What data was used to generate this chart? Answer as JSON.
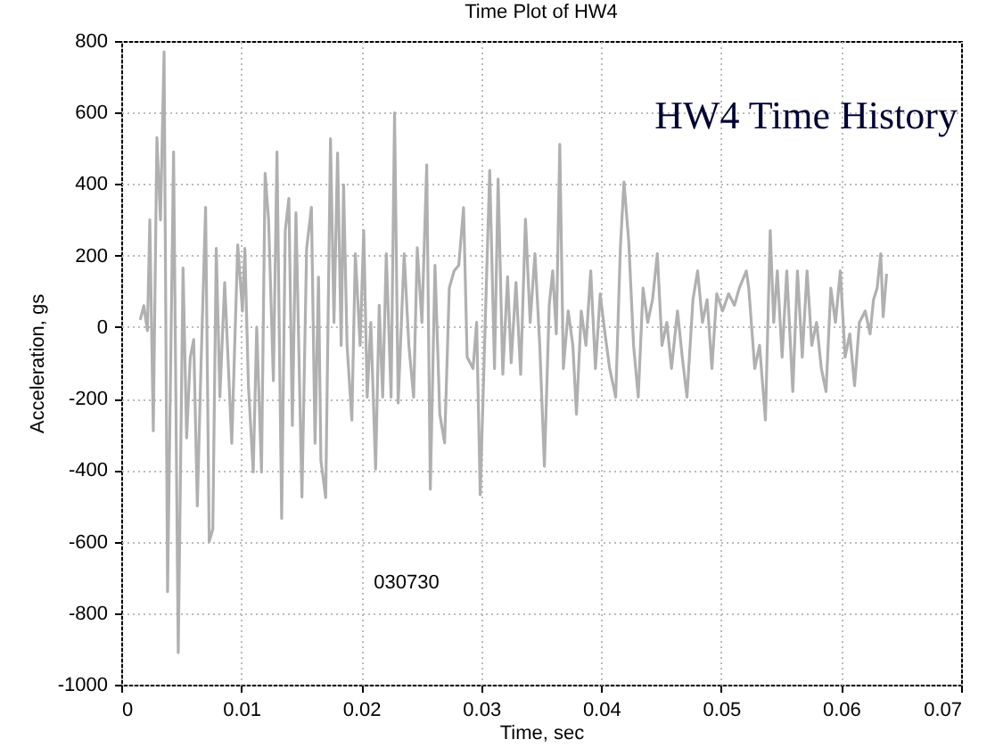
{
  "chart_data": {
    "type": "line",
    "title": "Time Plot of HW4",
    "xlabel": "Time, sec",
    "ylabel": "Acceleration, gs",
    "annotations": [
      "HW4 Time History",
      "030730"
    ],
    "x": [
      0.00158,
      0.00188,
      0.00218,
      0.00238,
      0.00267,
      0.00297,
      0.00327,
      0.00357,
      0.00386,
      0.00436,
      0.00475,
      0.00515,
      0.00545,
      0.00575,
      0.00604,
      0.00634,
      0.00664,
      0.00703,
      0.00733,
      0.00763,
      0.00792,
      0.00822,
      0.00862,
      0.00921,
      0.00971,
      0.0101,
      0.0103,
      0.0106,
      0.011,
      0.01129,
      0.01169,
      0.01199,
      0.01228,
      0.01268,
      0.01298,
      0.01337,
      0.01367,
      0.01397,
      0.01426,
      0.01456,
      0.01506,
      0.01545,
      0.01585,
      0.01615,
      0.01644,
      0.01664,
      0.01704,
      0.01744,
      0.01773,
      0.01803,
      0.01833,
      0.01853,
      0.01882,
      0.01922,
      0.01951,
      0.01991,
      0.02021,
      0.0205,
      0.0208,
      0.0212,
      0.0215,
      0.02179,
      0.02209,
      0.02249,
      0.02278,
      0.02308,
      0.02358,
      0.02397,
      0.02437,
      0.02467,
      0.02506,
      0.02546,
      0.02576,
      0.02615,
      0.02655,
      0.02695,
      0.02734,
      0.02774,
      0.02813,
      0.02853,
      0.02883,
      0.02932,
      0.02962,
      0.02992,
      0.03031,
      0.03071,
      0.03111,
      0.03141,
      0.0318,
      0.0322,
      0.0325,
      0.0329,
      0.03329,
      0.03369,
      0.03408,
      0.03448,
      0.03488,
      0.03527,
      0.03567,
      0.03596,
      0.03626,
      0.03655,
      0.03685,
      0.03725,
      0.03764,
      0.03794,
      0.03834,
      0.03873,
      0.03913,
      0.03952,
      0.03992,
      0.04032,
      0.04071,
      0.04121,
      0.0416,
      0.0419,
      0.0423,
      0.0427,
      0.04309,
      0.04349,
      0.04388,
      0.04428,
      0.04468,
      0.04507,
      0.04547,
      0.04586,
      0.04636,
      0.04676,
      0.04715,
      0.04765,
      0.04804,
      0.04844,
      0.04883,
      0.04923,
      0.04963,
      0.05012,
      0.05062,
      0.05111,
      0.05151,
      0.0521,
      0.0523,
      0.0528,
      0.0532,
      0.05369,
      0.05409,
      0.05438,
      0.05468,
      0.05508,
      0.05547,
      0.05597,
      0.05636,
      0.05676,
      0.05716,
      0.05755,
      0.05795,
      0.05835,
      0.05874,
      0.05914,
      0.05953,
      0.05993,
      0.06033,
      0.06072,
      0.06112,
      0.06152,
      0.06201,
      0.06241,
      0.0627,
      0.063,
      0.0633,
      0.0635,
      0.06379
    ],
    "series": [
      {
        "color": "#b0b0b0",
        "values": [
          20,
          60,
          -10,
          300,
          -290,
          530,
          300,
          770,
          -740,
          490,
          -910,
          165,
          -310,
          -85,
          -35,
          -500,
          -115,
          335,
          -600,
          -565,
          220,
          -195,
          125,
          -325,
          230,
          45,
          220,
          -165,
          -405,
          0,
          -405,
          430,
          300,
          -150,
          490,
          -535,
          270,
          360,
          -275,
          320,
          -475,
          220,
          335,
          -325,
          140,
          -373,
          -477,
          527,
          13,
          487,
          -51,
          398,
          -51,
          -260,
          205,
          -51,
          270,
          -196,
          13,
          -397,
          61,
          -196,
          205,
          -196,
          599,
          -212,
          205,
          -51,
          -196,
          222,
          13,
          454,
          -453,
          173,
          -244,
          -324,
          109,
          157,
          173,
          334,
          -84,
          -116,
          13,
          -469,
          -19,
          438,
          -116,
          414,
          -132,
          141,
          -100,
          125,
          -132,
          302,
          13,
          205,
          -51,
          -389,
          61,
          157,
          -19,
          511,
          -116,
          45,
          -51,
          -244,
          45,
          -51,
          157,
          -116,
          93,
          -19,
          -116,
          -196,
          222,
          406,
          238,
          -51,
          -196,
          109,
          13,
          77,
          205,
          -51,
          13,
          -116,
          45,
          -84,
          -196,
          77,
          157,
          13,
          77,
          -116,
          93,
          45,
          93,
          61,
          109,
          157,
          109,
          -116,
          -51,
          -260,
          270,
          13,
          157,
          -84,
          157,
          -180,
          157,
          -84,
          157,
          -51,
          13,
          -116,
          -180,
          109,
          13,
          157,
          -84,
          -19,
          -164,
          13,
          45,
          -19,
          77,
          109,
          205,
          29,
          149
        ]
      }
    ],
    "xlim": [
      0,
      0.07
    ],
    "xticks": [
      0,
      0.01,
      0.02,
      0.03,
      0.04,
      0.05,
      0.06,
      0.07
    ],
    "ylim": [
      -1000,
      800
    ],
    "yticks": [
      -1000,
      -800,
      -600,
      -400,
      -200,
      0,
      200,
      400,
      600,
      800
    ],
    "grid": true,
    "marker": "none",
    "line_style": "solid"
  }
}
